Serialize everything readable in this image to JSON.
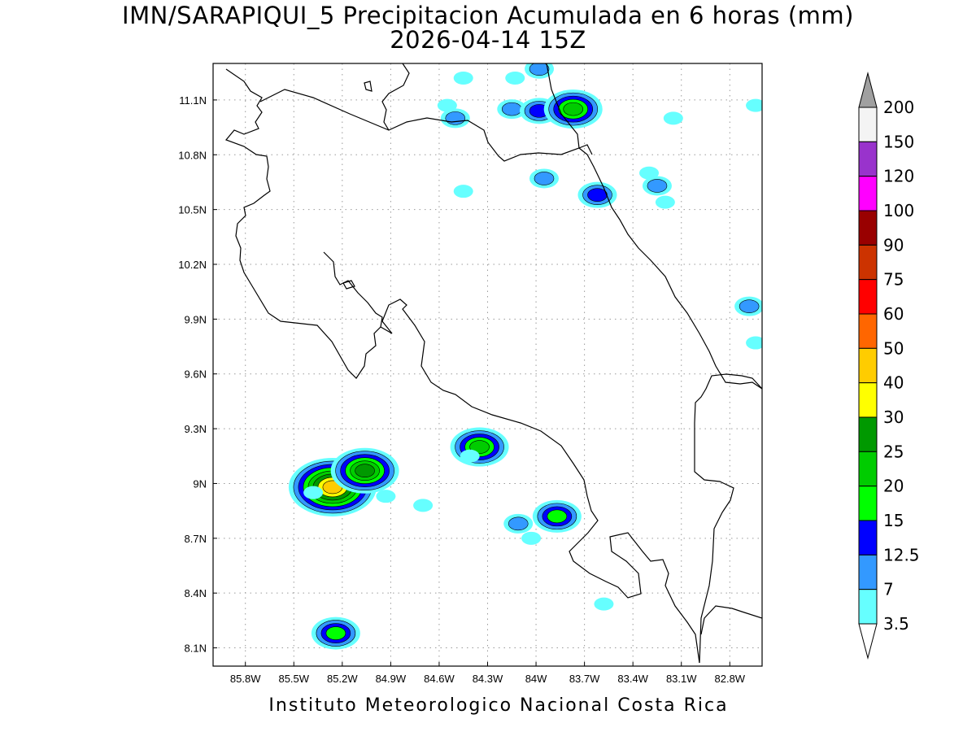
{
  "title": {
    "line1": "IMN/SARAPIQUI_5 Precipitacion Acumulada en 6 horas (mm)",
    "line2": "2026-04-14 15Z"
  },
  "credit": "Instituto Meteorologico Nacional Costa Rica",
  "map": {
    "lon_min": -86.0,
    "lon_max": -82.6,
    "lat_min": 8.0,
    "lat_max": 11.3,
    "grid": true,
    "x_ticks": [
      "85.8W",
      "85.5W",
      "85.2W",
      "84.9W",
      "84.6W",
      "84.3W",
      "84W",
      "83.7W",
      "83.4W",
      "83.1W",
      "82.8W"
    ],
    "y_ticks": [
      "11.1N",
      "10.8N",
      "10.5N",
      "10.2N",
      "9.9N",
      "9.6N",
      "9.3N",
      "9N",
      "8.7N",
      "8.4N",
      "8.1N"
    ]
  },
  "colorbar": {
    "levels": [
      "3.5",
      "7",
      "12.5",
      "15",
      "20",
      "25",
      "30",
      "40",
      "50",
      "60",
      "75",
      "90",
      "100",
      "120",
      "150",
      "200"
    ],
    "colors": [
      "#66ffff",
      "#3399ff",
      "#0000ff",
      "#00ff00",
      "#00cc00",
      "#009900",
      "#ffff00",
      "#ffcc00",
      "#ff6600",
      "#ff0000",
      "#cc3300",
      "#990000",
      "#ff00ff",
      "#9933cc",
      "#f4f4f4",
      "#a0a0a0"
    ]
  },
  "precip_cells": [
    {
      "lon": -84.45,
      "lat": 11.22,
      "value": 3.5
    },
    {
      "lon": -84.13,
      "lat": 11.22,
      "value": 3.5
    },
    {
      "lon": -83.98,
      "lat": 11.27,
      "value": 7
    },
    {
      "lon": -84.55,
      "lat": 11.07,
      "value": 3.5
    },
    {
      "lon": -84.5,
      "lat": 11.0,
      "value": 7
    },
    {
      "lon": -84.15,
      "lat": 11.05,
      "value": 7
    },
    {
      "lon": -83.98,
      "lat": 11.04,
      "value": 12.5
    },
    {
      "lon": -83.77,
      "lat": 11.05,
      "value": 20
    },
    {
      "lon": -83.15,
      "lat": 11.0,
      "value": 3.5
    },
    {
      "lon": -82.64,
      "lat": 11.07,
      "value": 3.5
    },
    {
      "lon": -83.95,
      "lat": 10.67,
      "value": 7
    },
    {
      "lon": -84.45,
      "lat": 10.6,
      "value": 3.5
    },
    {
      "lon": -83.62,
      "lat": 10.58,
      "value": 12.5
    },
    {
      "lon": -83.25,
      "lat": 10.63,
      "value": 7
    },
    {
      "lon": -83.3,
      "lat": 10.7,
      "value": 3.5
    },
    {
      "lon": -83.2,
      "lat": 10.54,
      "value": 3.5
    },
    {
      "lon": -82.68,
      "lat": 9.97,
      "value": 7
    },
    {
      "lon": -82.64,
      "lat": 9.77,
      "value": 3.5
    },
    {
      "lon": -85.26,
      "lat": 8.98,
      "value": 40
    },
    {
      "lon": -85.06,
      "lat": 9.07,
      "value": 25
    },
    {
      "lon": -85.38,
      "lat": 8.95,
      "value": 3.5
    },
    {
      "lon": -84.93,
      "lat": 8.93,
      "value": 3.5
    },
    {
      "lon": -84.7,
      "lat": 8.88,
      "value": 3.5
    },
    {
      "lon": -84.35,
      "lat": 9.2,
      "value": 20
    },
    {
      "lon": -84.41,
      "lat": 9.15,
      "value": 3.5
    },
    {
      "lon": -84.11,
      "lat": 8.78,
      "value": 7
    },
    {
      "lon": -84.03,
      "lat": 8.7,
      "value": 3.5
    },
    {
      "lon": -83.87,
      "lat": 8.82,
      "value": 15
    },
    {
      "lon": -83.58,
      "lat": 8.34,
      "value": 3.5
    },
    {
      "lon": -85.24,
      "lat": 8.18,
      "value": 15
    }
  ]
}
